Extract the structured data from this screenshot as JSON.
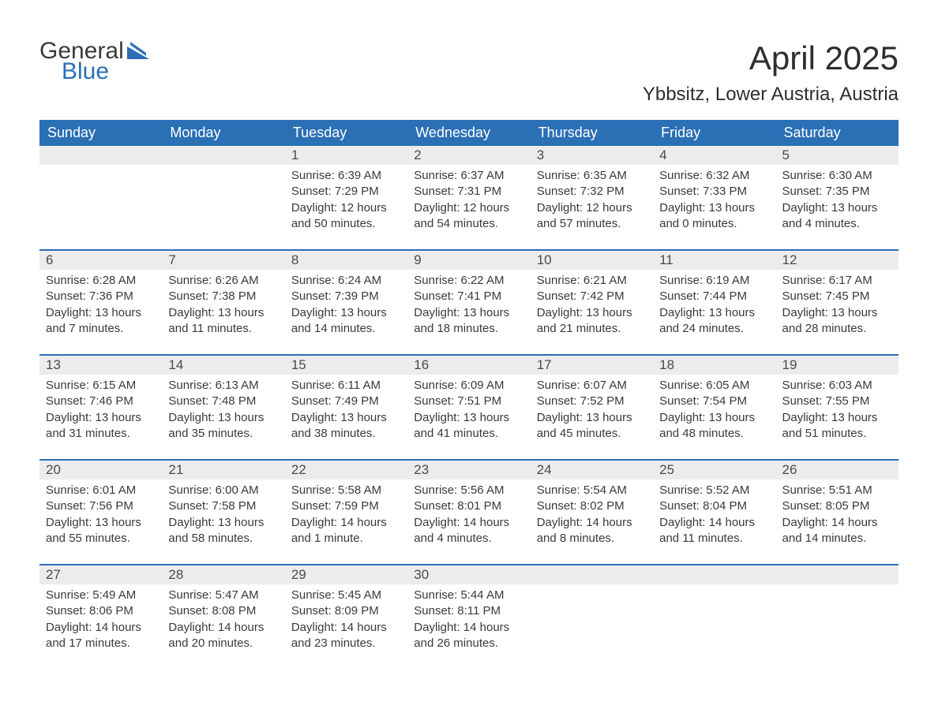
{
  "brand": {
    "word1": "General",
    "word2": "Blue",
    "shape_color": "#2b6fb5"
  },
  "title": "April 2025",
  "location": "Ybbsitz, Lower Austria, Austria",
  "colors": {
    "header_bg": "#2b6fb5",
    "header_fg": "#ffffff",
    "daynum_bg": "#ececec",
    "text": "#3a3a3a",
    "row_border": "#2b6fb5",
    "page_bg": "#ffffff"
  },
  "typography": {
    "title_size": 42,
    "location_size": 24,
    "dayhead_size": 18,
    "daynum_size": 17,
    "body_size": 15
  },
  "weekdays": [
    "Sunday",
    "Monday",
    "Tuesday",
    "Wednesday",
    "Thursday",
    "Friday",
    "Saturday"
  ],
  "weeks": [
    [
      {
        "blank": true
      },
      {
        "blank": true
      },
      {
        "day": "1",
        "sunrise": "Sunrise: 6:39 AM",
        "sunset": "Sunset: 7:29 PM",
        "daylight": "Daylight: 12 hours and 50 minutes."
      },
      {
        "day": "2",
        "sunrise": "Sunrise: 6:37 AM",
        "sunset": "Sunset: 7:31 PM",
        "daylight": "Daylight: 12 hours and 54 minutes."
      },
      {
        "day": "3",
        "sunrise": "Sunrise: 6:35 AM",
        "sunset": "Sunset: 7:32 PM",
        "daylight": "Daylight: 12 hours and 57 minutes."
      },
      {
        "day": "4",
        "sunrise": "Sunrise: 6:32 AM",
        "sunset": "Sunset: 7:33 PM",
        "daylight": "Daylight: 13 hours and 0 minutes."
      },
      {
        "day": "5",
        "sunrise": "Sunrise: 6:30 AM",
        "sunset": "Sunset: 7:35 PM",
        "daylight": "Daylight: 13 hours and 4 minutes."
      }
    ],
    [
      {
        "day": "6",
        "sunrise": "Sunrise: 6:28 AM",
        "sunset": "Sunset: 7:36 PM",
        "daylight": "Daylight: 13 hours and 7 minutes."
      },
      {
        "day": "7",
        "sunrise": "Sunrise: 6:26 AM",
        "sunset": "Sunset: 7:38 PM",
        "daylight": "Daylight: 13 hours and 11 minutes."
      },
      {
        "day": "8",
        "sunrise": "Sunrise: 6:24 AM",
        "sunset": "Sunset: 7:39 PM",
        "daylight": "Daylight: 13 hours and 14 minutes."
      },
      {
        "day": "9",
        "sunrise": "Sunrise: 6:22 AM",
        "sunset": "Sunset: 7:41 PM",
        "daylight": "Daylight: 13 hours and 18 minutes."
      },
      {
        "day": "10",
        "sunrise": "Sunrise: 6:21 AM",
        "sunset": "Sunset: 7:42 PM",
        "daylight": "Daylight: 13 hours and 21 minutes."
      },
      {
        "day": "11",
        "sunrise": "Sunrise: 6:19 AM",
        "sunset": "Sunset: 7:44 PM",
        "daylight": "Daylight: 13 hours and 24 minutes."
      },
      {
        "day": "12",
        "sunrise": "Sunrise: 6:17 AM",
        "sunset": "Sunset: 7:45 PM",
        "daylight": "Daylight: 13 hours and 28 minutes."
      }
    ],
    [
      {
        "day": "13",
        "sunrise": "Sunrise: 6:15 AM",
        "sunset": "Sunset: 7:46 PM",
        "daylight": "Daylight: 13 hours and 31 minutes."
      },
      {
        "day": "14",
        "sunrise": "Sunrise: 6:13 AM",
        "sunset": "Sunset: 7:48 PM",
        "daylight": "Daylight: 13 hours and 35 minutes."
      },
      {
        "day": "15",
        "sunrise": "Sunrise: 6:11 AM",
        "sunset": "Sunset: 7:49 PM",
        "daylight": "Daylight: 13 hours and 38 minutes."
      },
      {
        "day": "16",
        "sunrise": "Sunrise: 6:09 AM",
        "sunset": "Sunset: 7:51 PM",
        "daylight": "Daylight: 13 hours and 41 minutes."
      },
      {
        "day": "17",
        "sunrise": "Sunrise: 6:07 AM",
        "sunset": "Sunset: 7:52 PM",
        "daylight": "Daylight: 13 hours and 45 minutes."
      },
      {
        "day": "18",
        "sunrise": "Sunrise: 6:05 AM",
        "sunset": "Sunset: 7:54 PM",
        "daylight": "Daylight: 13 hours and 48 minutes."
      },
      {
        "day": "19",
        "sunrise": "Sunrise: 6:03 AM",
        "sunset": "Sunset: 7:55 PM",
        "daylight": "Daylight: 13 hours and 51 minutes."
      }
    ],
    [
      {
        "day": "20",
        "sunrise": "Sunrise: 6:01 AM",
        "sunset": "Sunset: 7:56 PM",
        "daylight": "Daylight: 13 hours and 55 minutes."
      },
      {
        "day": "21",
        "sunrise": "Sunrise: 6:00 AM",
        "sunset": "Sunset: 7:58 PM",
        "daylight": "Daylight: 13 hours and 58 minutes."
      },
      {
        "day": "22",
        "sunrise": "Sunrise: 5:58 AM",
        "sunset": "Sunset: 7:59 PM",
        "daylight": "Daylight: 14 hours and 1 minute."
      },
      {
        "day": "23",
        "sunrise": "Sunrise: 5:56 AM",
        "sunset": "Sunset: 8:01 PM",
        "daylight": "Daylight: 14 hours and 4 minutes."
      },
      {
        "day": "24",
        "sunrise": "Sunrise: 5:54 AM",
        "sunset": "Sunset: 8:02 PM",
        "daylight": "Daylight: 14 hours and 8 minutes."
      },
      {
        "day": "25",
        "sunrise": "Sunrise: 5:52 AM",
        "sunset": "Sunset: 8:04 PM",
        "daylight": "Daylight: 14 hours and 11 minutes."
      },
      {
        "day": "26",
        "sunrise": "Sunrise: 5:51 AM",
        "sunset": "Sunset: 8:05 PM",
        "daylight": "Daylight: 14 hours and 14 minutes."
      }
    ],
    [
      {
        "day": "27",
        "sunrise": "Sunrise: 5:49 AM",
        "sunset": "Sunset: 8:06 PM",
        "daylight": "Daylight: 14 hours and 17 minutes."
      },
      {
        "day": "28",
        "sunrise": "Sunrise: 5:47 AM",
        "sunset": "Sunset: 8:08 PM",
        "daylight": "Daylight: 14 hours and 20 minutes."
      },
      {
        "day": "29",
        "sunrise": "Sunrise: 5:45 AM",
        "sunset": "Sunset: 8:09 PM",
        "daylight": "Daylight: 14 hours and 23 minutes."
      },
      {
        "day": "30",
        "sunrise": "Sunrise: 5:44 AM",
        "sunset": "Sunset: 8:11 PM",
        "daylight": "Daylight: 14 hours and 26 minutes."
      },
      {
        "blank": true
      },
      {
        "blank": true
      },
      {
        "blank": true
      }
    ]
  ]
}
